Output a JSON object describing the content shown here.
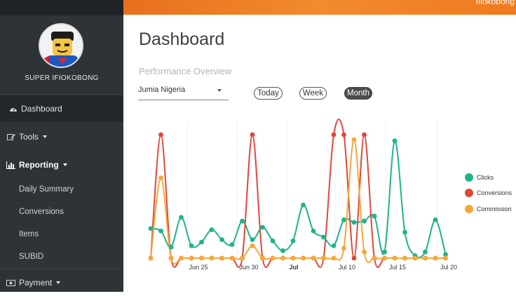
{
  "user": {
    "name": "SUPER IFIOKOBONG",
    "topbar_name": "Ifiokobong"
  },
  "sidebar": {
    "items": [
      {
        "label": "Dashboard",
        "icon": "dashboard-icon"
      },
      {
        "label": "Tools",
        "icon": "edit-icon"
      },
      {
        "label": "Reporting",
        "icon": "bar-chart-icon"
      },
      {
        "label": "Payment",
        "icon": "money-icon"
      }
    ],
    "reporting_subitems": [
      "Daily Summary",
      "Conversions",
      "Items",
      "SUBID"
    ]
  },
  "main": {
    "title": "Dashboard",
    "section": "Performance Overview",
    "store": "Jumia Nigeria",
    "ranges": [
      "Today",
      "Week",
      "Month"
    ],
    "active_range": "Month"
  },
  "colors": {
    "clicks": "#1fb38c",
    "conversions": "#e0473a",
    "commission": "#f5a83a",
    "topbar": "#ef7a1f"
  },
  "chart_data": {
    "type": "line",
    "x_ticks": [
      "Jun 25",
      "Jun 30",
      "Jul",
      "Jul 10",
      "Jul 15",
      "Jul 20"
    ],
    "legend": [
      "Clicks",
      "Conversions",
      "Commission"
    ],
    "legend_position": "right",
    "grid": true,
    "series": [
      {
        "name": "Clicks",
        "values": [
          0.24,
          0.22,
          0.09,
          0.33,
          0.1,
          0.13,
          0.23,
          0.15,
          0.11,
          0.3,
          0.15,
          0.25,
          0.14,
          0.06,
          0.14,
          0.43,
          0.22,
          0.17,
          0.1,
          0.31,
          0.29,
          0.3,
          0.34,
          0.05,
          0.95,
          0.21,
          0.02,
          0.05,
          0.31,
          0.03
        ]
      },
      {
        "name": "Conversions",
        "values": [
          0.0,
          1.0,
          0.0,
          0.0,
          0.0,
          0.0,
          0.0,
          0.0,
          0.0,
          0.0,
          1.0,
          0.0,
          0.0,
          0.0,
          0.0,
          0.0,
          0.0,
          0.0,
          1.0,
          1.0,
          0.0,
          1.0,
          0.0,
          0.0,
          0.0,
          0.0,
          0.0,
          0.0,
          0.0,
          0.0
        ]
      },
      {
        "name": "Commission",
        "values": [
          0.0,
          0.65,
          0.0,
          0.0,
          0.0,
          0.0,
          0.0,
          0.0,
          0.0,
          0.0,
          0.1,
          0.0,
          0.0,
          0.0,
          0.0,
          0.0,
          0.0,
          0.0,
          0.0,
          0.08,
          0.96,
          0.05,
          0.0,
          0.0,
          0.0,
          0.0,
          0.0,
          0.0,
          0.0,
          0.0
        ]
      }
    ]
  }
}
